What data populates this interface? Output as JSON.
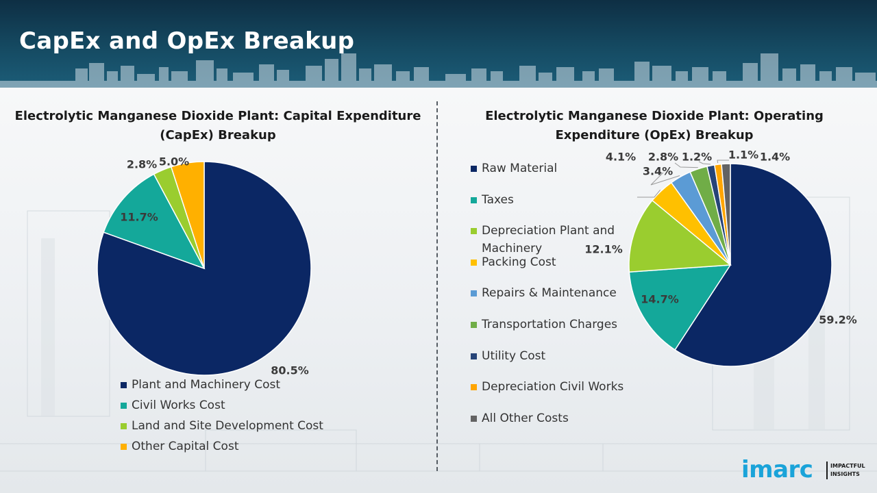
{
  "page": {
    "title": "CapEx and OpEx Breakup"
  },
  "brand": {
    "name": "imarc",
    "tagline": "IMPACTFUL\nINSIGHTS"
  },
  "chart_data": [
    {
      "id": "capex",
      "type": "pie",
      "title": "Electrolytic Manganese Dioxide Plant: Capital Expenditure (CapEx) Breakup",
      "categories": [
        "Plant and Machinery Cost",
        "Civil Works Cost",
        "Land and Site Development Cost",
        "Other Capital Cost"
      ],
      "values": [
        80.5,
        11.7,
        2.8,
        5.0
      ],
      "labels": [
        "80.5%",
        "11.7%",
        "2.8%",
        "5.0%"
      ],
      "colors": [
        "#0b2764",
        "#14a89a",
        "#9acd2f",
        "#ffb000"
      ],
      "legend_position": "bottom"
    },
    {
      "id": "opex",
      "type": "pie",
      "title": "Electrolytic Manganese Dioxide Plant: Operating Expenditure (OpEx) Breakup",
      "categories": [
        "Raw Material",
        "Taxes",
        "Depreciation Plant and Machinery",
        "Packing Cost",
        "Repairs & Maintenance",
        "Transportation Charges",
        "Utility Cost",
        "Depreciation Civil Works",
        "All Other Costs"
      ],
      "values": [
        59.2,
        14.7,
        12.1,
        4.1,
        3.4,
        2.8,
        1.2,
        1.1,
        1.4
      ],
      "labels": [
        "59.2%",
        "14.7%",
        "12.1%",
        "4.1%",
        "3.4%",
        "2.8%",
        "1.2%",
        "1.1%",
        "1.4%"
      ],
      "colors": [
        "#0b2764",
        "#14a89a",
        "#9acd2f",
        "#ffc000",
        "#5b9bd5",
        "#70ad47",
        "#264478",
        "#ffa500",
        "#636363"
      ],
      "legend_position": "left"
    }
  ]
}
